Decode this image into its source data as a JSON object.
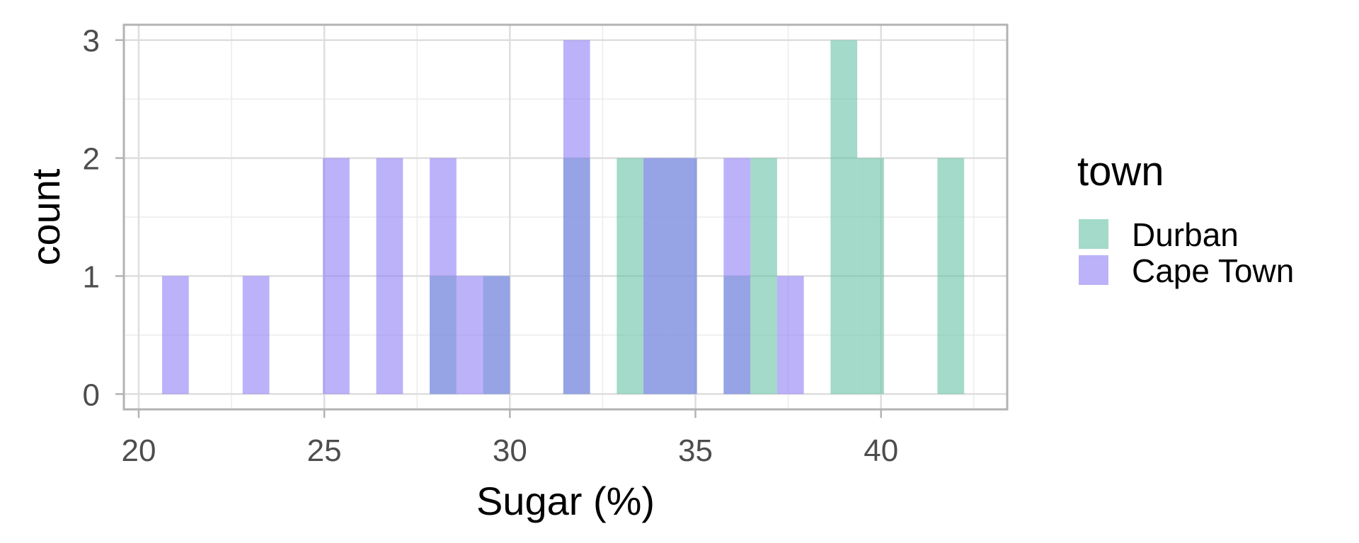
{
  "chart_data": {
    "type": "bar",
    "subtype": "overlaid-histogram",
    "xlabel": "Sugar (%)",
    "ylabel": "count",
    "xlim": [
      19.6,
      43.4
    ],
    "ylim": [
      -0.13,
      3.13
    ],
    "x_ticks": [
      20,
      25,
      30,
      35,
      40
    ],
    "y_ticks": [
      0,
      1,
      2,
      3
    ],
    "grid": true,
    "bin_width": 0.72,
    "legend": {
      "title": "town",
      "position": "right",
      "entries": [
        "Durban",
        "Cape Town"
      ]
    },
    "series": [
      {
        "name": "Durban",
        "color": "#66c2a5",
        "bins": [
          {
            "x": 28.2,
            "count": 1
          },
          {
            "x": 29.64,
            "count": 1
          },
          {
            "x": 31.8,
            "count": 2
          },
          {
            "x": 33.24,
            "count": 2
          },
          {
            "x": 33.96,
            "count": 2
          },
          {
            "x": 34.68,
            "count": 2
          },
          {
            "x": 36.12,
            "count": 1
          },
          {
            "x": 36.84,
            "count": 2
          },
          {
            "x": 39.0,
            "count": 3
          },
          {
            "x": 39.72,
            "count": 2
          },
          {
            "x": 41.88,
            "count": 2
          }
        ]
      },
      {
        "name": "Cape Town",
        "color": "#8d7ff7",
        "bins": [
          {
            "x": 20.99,
            "count": 1
          },
          {
            "x": 23.16,
            "count": 1
          },
          {
            "x": 25.32,
            "count": 2
          },
          {
            "x": 26.76,
            "count": 2
          },
          {
            "x": 28.2,
            "count": 2
          },
          {
            "x": 28.92,
            "count": 1
          },
          {
            "x": 29.64,
            "count": 1
          },
          {
            "x": 31.8,
            "count": 3
          },
          {
            "x": 33.96,
            "count": 2
          },
          {
            "x": 34.68,
            "count": 2
          },
          {
            "x": 36.12,
            "count": 2
          },
          {
            "x": 37.56,
            "count": 1
          }
        ]
      }
    ]
  }
}
